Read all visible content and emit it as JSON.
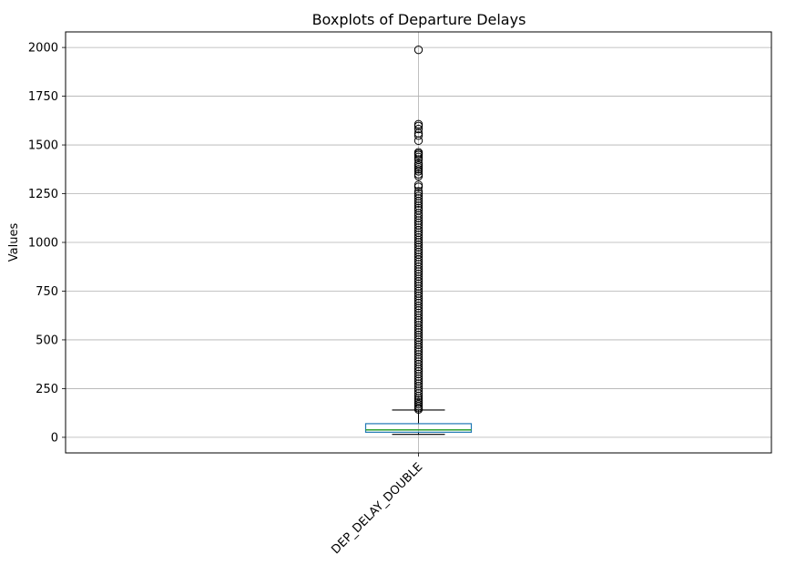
{
  "chart_data": {
    "type": "boxplot",
    "title": "Boxplots of Departure Delays",
    "xlabel": "",
    "ylabel": "Values",
    "ylim": [
      -80,
      2080
    ],
    "y_ticks": [
      0,
      250,
      500,
      750,
      1000,
      1250,
      1500,
      1750,
      2000
    ],
    "grid": true,
    "categories": [
      "DEP_DELAY_DOUBLE"
    ],
    "boxes": [
      {
        "label": "DEP_DELAY_DOUBLE",
        "whisker_low": 15,
        "q1": 26,
        "median": 38,
        "q3": 70,
        "whisker_high": 140,
        "outliers": [
          1988,
          1606,
          1597,
          1582,
          1560,
          1548,
          1522,
          1462,
          1455,
          1448,
          1438,
          1425,
          1405,
          1395,
          1385,
          1375,
          1365,
          1350,
          1340,
          1295,
          1285,
          1262,
          1250,
          1238,
          1225,
          1212,
          1200,
          1188,
          1176,
          1165,
          1150,
          1138,
          1125,
          1112,
          1100,
          1088,
          1075,
          1062,
          1050,
          1038,
          1025,
          1012,
          1000,
          988,
          975,
          962,
          950,
          938,
          925,
          912,
          900,
          888,
          875,
          862,
          850,
          838,
          825,
          812,
          800,
          788,
          775,
          762,
          750,
          738,
          725,
          712,
          700,
          688,
          675,
          662,
          650,
          638,
          625,
          612,
          600,
          588,
          575,
          562,
          550,
          538,
          525,
          512,
          500,
          488,
          475,
          462,
          450,
          438,
          425,
          412,
          400,
          388,
          375,
          362,
          350,
          338,
          325,
          312,
          300,
          288,
          275,
          262,
          250,
          238,
          225,
          212,
          200,
          190,
          180,
          170,
          160,
          150,
          143
        ]
      }
    ]
  }
}
